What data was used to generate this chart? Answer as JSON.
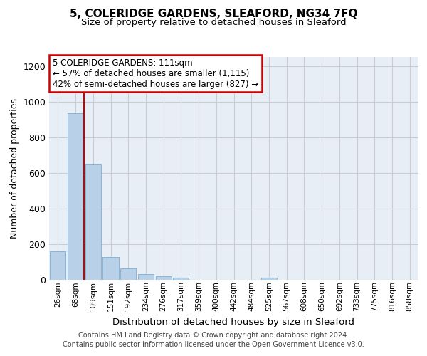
{
  "title": "5, COLERIDGE GARDENS, SLEAFORD, NG34 7FQ",
  "subtitle": "Size of property relative to detached houses in Sleaford",
  "xlabel": "Distribution of detached houses by size in Sleaford",
  "ylabel": "Number of detached properties",
  "bin_labels": [
    "26sqm",
    "68sqm",
    "109sqm",
    "151sqm",
    "192sqm",
    "234sqm",
    "276sqm",
    "317sqm",
    "359sqm",
    "400sqm",
    "442sqm",
    "484sqm",
    "525sqm",
    "567sqm",
    "608sqm",
    "650sqm",
    "692sqm",
    "733sqm",
    "775sqm",
    "816sqm",
    "858sqm"
  ],
  "bar_heights": [
    160,
    935,
    648,
    128,
    63,
    30,
    18,
    10,
    0,
    0,
    0,
    0,
    12,
    0,
    0,
    0,
    0,
    0,
    0,
    0,
    0
  ],
  "bar_color": "#b8d0e8",
  "bar_edge_color": "#7aafd4",
  "grid_color": "#c8cdd4",
  "background_color": "#e8eef5",
  "annotation_text": "5 COLERIDGE GARDENS: 111sqm\n← 57% of detached houses are smaller (1,115)\n42% of semi-detached houses are larger (827) →",
  "annotation_box_facecolor": "#ffffff",
  "annotation_border_color": "#cc0000",
  "ylim": [
    0,
    1250
  ],
  "yticks": [
    0,
    200,
    400,
    600,
    800,
    1000,
    1200
  ],
  "vline_color": "#cc0000",
  "vline_x": 2.0,
  "footer_line1": "Contains HM Land Registry data © Crown copyright and database right 2024.",
  "footer_line2": "Contains public sector information licensed under the Open Government Licence v3.0."
}
